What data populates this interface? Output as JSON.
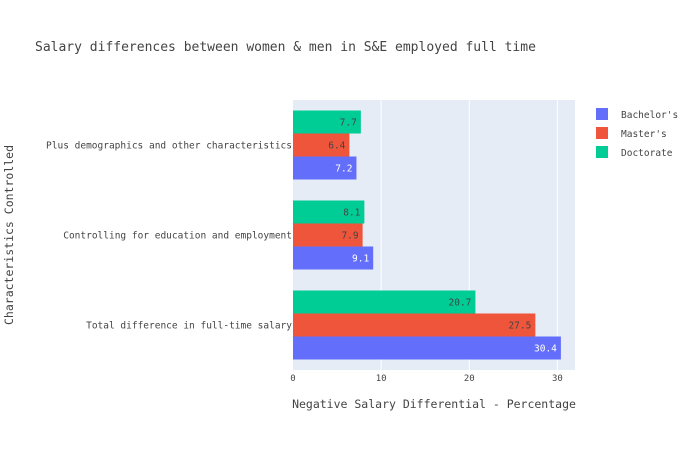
{
  "chart_data": {
    "type": "bar",
    "orientation": "horizontal",
    "title": "Salary differences between women & men in S&E employed full time",
    "xlabel": "Negative Salary Differential - Percentage",
    "ylabel": "Characteristics Controlled",
    "categories": [
      "Total difference in full-time salary",
      "Controlling for education and employment",
      "Plus demographics and other characteristics"
    ],
    "series": [
      {
        "name": "Bachelor's",
        "color": "#636efa",
        "label_color": "#ffffff",
        "values": [
          30.4,
          9.1,
          7.2
        ]
      },
      {
        "name": "Master's",
        "color": "#ef553b",
        "label_color": "#444444",
        "values": [
          27.5,
          7.9,
          6.4
        ]
      },
      {
        "name": "Doctorate",
        "color": "#00cc96",
        "label_color": "#444444",
        "values": [
          20.7,
          8.1,
          7.7
        ]
      }
    ],
    "xlim": [
      0,
      32
    ],
    "xticks": [
      0,
      10,
      20,
      30
    ],
    "grid": true,
    "legend_position": "top-right",
    "plot_background": "#e5ecf6"
  }
}
